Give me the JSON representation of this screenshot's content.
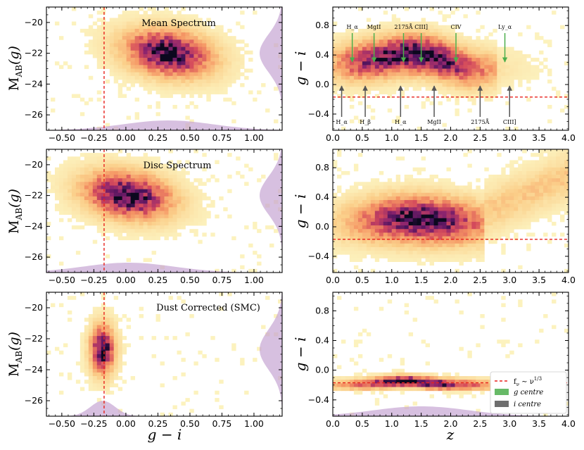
{
  "colors": {
    "dashed_line": "#e8211c",
    "marginal_fill": "#c6a5d3",
    "g_centre_arrow": "#4cae4c",
    "i_centre_arrow": "#555555",
    "axis": "#000000"
  },
  "labels": {
    "left_xlabel": "g − i",
    "right_xlabel": "z",
    "left_ylabel_main": "M",
    "left_ylabel_sub": "AB",
    "left_ylabel_tail": "(g)",
    "right_ylabel": "g − i"
  },
  "legend": {
    "dashed_label_main": "f",
    "dashed_label_sub": "ν",
    "dashed_label_mid": " ∼ ν",
    "dashed_label_sup": "1/3",
    "g_label": "g centre",
    "i_label": "i centre"
  },
  "chart_data": [
    {
      "type": "heatmap",
      "panel": "left-top",
      "title": "Mean Spectrum",
      "xlabel": "",
      "ylabel": "M_AB(g)",
      "xlim": [
        -0.62,
        1.22
      ],
      "ylim": [
        -19.0,
        -27.0
      ],
      "xticks": [
        "−0.50",
        "−0.25",
        "0.00",
        "0.25",
        "0.50",
        "0.75",
        "1.00"
      ],
      "xtick_values": [
        -0.5,
        -0.25,
        0,
        0.25,
        0.5,
        0.75,
        1.0
      ],
      "yticks": [
        "−26",
        "−24",
        "−22",
        "−20"
      ],
      "ytick_values": [
        -26,
        -24,
        -22,
        -20
      ],
      "vline_x": -0.17,
      "density_centre": {
        "x": 0.33,
        "y": -22.0,
        "sx": 0.22,
        "sy": 0.95,
        "tilt": -0.25
      },
      "marginal": "bottom and right (purple)"
    },
    {
      "type": "heatmap",
      "panel": "left-middle",
      "title": "Disc Spectrum",
      "xlabel": "",
      "ylabel": "M_AB(g)",
      "xlim": [
        -0.62,
        1.22
      ],
      "ylim": [
        -19.0,
        -27.0
      ],
      "xticks": [
        "−0.50",
        "−0.25",
        "0.00",
        "0.25",
        "0.50",
        "0.75",
        "1.00"
      ],
      "xtick_values": [
        -0.5,
        -0.25,
        0,
        0.25,
        0.5,
        0.75,
        1.0
      ],
      "yticks": [
        "−26",
        "−24",
        "−22",
        "−20"
      ],
      "ytick_values": [
        -26,
        -24,
        -22,
        -20
      ],
      "vline_x": -0.17,
      "density_centre": {
        "x": 0.02,
        "y": -22.0,
        "sx": 0.22,
        "sy": 0.95,
        "tilt": -0.25
      }
    },
    {
      "type": "heatmap",
      "panel": "left-bottom",
      "title": "Dust Corrected (SMC)",
      "xlabel": "g − i",
      "ylabel": "M_AB(g)",
      "xlim": [
        -0.62,
        1.22
      ],
      "ylim": [
        -19.0,
        -27.0
      ],
      "xticks": [
        "−0.50",
        "−0.25",
        "0.00",
        "0.25",
        "0.50",
        "0.75",
        "1.00"
      ],
      "xtick_values": [
        -0.5,
        -0.25,
        0,
        0.25,
        0.5,
        0.75,
        1.0
      ],
      "yticks": [
        "−26",
        "−24",
        "−22",
        "−20"
      ],
      "ytick_values": [
        -26,
        -24,
        -22,
        -20
      ],
      "vline_x": -0.17,
      "density_centre": {
        "x": -0.18,
        "y": -22.7,
        "sx": 0.06,
        "sy": 1.0,
        "tilt": 0
      }
    },
    {
      "type": "heatmap",
      "panel": "right-top",
      "xlabel": "",
      "ylabel": "g − i",
      "xlim": [
        0.0,
        4.0
      ],
      "ylim": [
        1.05,
        -0.62
      ],
      "xticks": [
        "0.0",
        "0.5",
        "1.0",
        "1.5",
        "2.0",
        "2.5",
        "3.0",
        "3.5",
        "4.0"
      ],
      "xtick_values": [
        0,
        0.5,
        1,
        1.5,
        2,
        2.5,
        3,
        3.5,
        4
      ],
      "yticks": [
        "−0.4",
        "0.0",
        "0.4",
        "0.8"
      ],
      "ytick_values": [
        -0.4,
        0.0,
        0.4,
        0.8
      ],
      "hline_y": -0.17,
      "g_centre_arrows": [
        {
          "z": 0.33,
          "label": "H_α"
        },
        {
          "z": 0.7,
          "label": "MgII"
        },
        {
          "z": 1.2,
          "label": "2175Å"
        },
        {
          "z": 1.5,
          "label": "CIII]"
        },
        {
          "z": 2.09,
          "label": "CIV"
        },
        {
          "z": 2.92,
          "label": "Ly_α"
        }
      ],
      "i_centre_arrows": [
        {
          "z": 0.15,
          "label": "H_α"
        },
        {
          "z": 0.55,
          "label": "H_β"
        },
        {
          "z": 1.15,
          "label": "H_α"
        },
        {
          "z": 1.72,
          "label": "MgII"
        },
        {
          "z": 2.5,
          "label": "2175Å"
        },
        {
          "z": 3.0,
          "label": "CIII]"
        }
      ]
    },
    {
      "type": "heatmap",
      "panel": "right-middle",
      "xlabel": "",
      "ylabel": "g − i",
      "xlim": [
        0.0,
        4.0
      ],
      "ylim": [
        1.05,
        -0.62
      ],
      "xticks": [
        "0.0",
        "0.5",
        "1.0",
        "1.5",
        "2.0",
        "2.5",
        "3.0",
        "3.5",
        "4.0"
      ],
      "xtick_values": [
        0,
        0.5,
        1,
        1.5,
        2,
        2.5,
        3,
        3.5,
        4
      ],
      "yticks": [
        "−0.4",
        "0.0",
        "0.4",
        "0.8"
      ],
      "ytick_values": [
        -0.4,
        0.0,
        0.4,
        0.8
      ],
      "hline_y": -0.17
    },
    {
      "type": "heatmap",
      "panel": "right-bottom",
      "xlabel": "z",
      "ylabel": "g − i",
      "xlim": [
        0.0,
        4.0
      ],
      "ylim": [
        1.05,
        -0.62
      ],
      "xticks": [
        "0.0",
        "0.5",
        "1.0",
        "1.5",
        "2.0",
        "2.5",
        "3.0",
        "3.5",
        "4.0"
      ],
      "xtick_values": [
        0,
        0.5,
        1,
        1.5,
        2,
        2.5,
        3,
        3.5,
        4
      ],
      "yticks": [
        "−0.4",
        "0.0",
        "0.4",
        "0.8"
      ],
      "ytick_values": [
        -0.4,
        0.0,
        0.4,
        0.8
      ],
      "hline_y": -0.17,
      "legend_position": "bottom-right"
    }
  ]
}
